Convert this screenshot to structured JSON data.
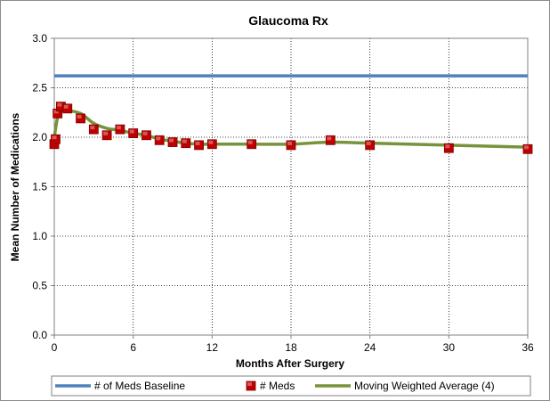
{
  "chart_data": {
    "type": "line",
    "title": "Glaucoma Rx",
    "xlabel": "Months After Surgery",
    "ylabel": "Mean Number of Medications",
    "xlim": [
      0,
      36
    ],
    "ylim": [
      0,
      3.0
    ],
    "x_ticks": [
      "0",
      "6",
      "12",
      "18",
      "24",
      "30",
      "36"
    ],
    "x_tick_values": [
      0,
      6,
      12,
      18,
      24,
      30,
      36
    ],
    "y_ticks": [
      "0.0",
      "0.5",
      "1.0",
      "1.5",
      "2.0",
      "2.5",
      "3.0"
    ],
    "y_tick_values": [
      0,
      0.5,
      1.0,
      1.5,
      2.0,
      2.5,
      3.0
    ],
    "grid": "horizontal and vertical dotted",
    "legend_position": "bottom",
    "series": [
      {
        "name": "# of Meds Baseline",
        "kind": "line",
        "color": "#4f81bd",
        "x": [
          0,
          36
        ],
        "y": [
          2.62,
          2.62
        ]
      },
      {
        "name": "# Meds",
        "kind": "markers",
        "color": "#c00000",
        "x": [
          0,
          0.1,
          0.25,
          0.5,
          1,
          2,
          3,
          4,
          5,
          6,
          7,
          8,
          9,
          10,
          11,
          12,
          15,
          18,
          21,
          24,
          30,
          36
        ],
        "y": [
          1.93,
          1.98,
          2.24,
          2.31,
          2.29,
          2.19,
          2.08,
          2.02,
          2.08,
          2.04,
          2.02,
          1.97,
          1.95,
          1.94,
          1.92,
          1.93,
          1.93,
          1.92,
          1.97,
          1.92,
          1.89,
          1.88
        ]
      },
      {
        "name": "Moving Weighted Average (4)",
        "kind": "smooth-line",
        "color": "#77933c",
        "x": [
          0,
          0.25,
          0.5,
          1,
          2,
          3,
          4,
          5,
          6,
          7,
          8,
          9,
          10,
          11,
          12,
          15,
          18,
          21,
          24,
          30,
          36
        ],
        "y": [
          2.0,
          2.2,
          2.26,
          2.27,
          2.24,
          2.14,
          2.09,
          2.07,
          2.04,
          2.02,
          1.98,
          1.96,
          1.94,
          1.93,
          1.93,
          1.93,
          1.93,
          1.95,
          1.94,
          1.92,
          1.9
        ]
      }
    ]
  }
}
